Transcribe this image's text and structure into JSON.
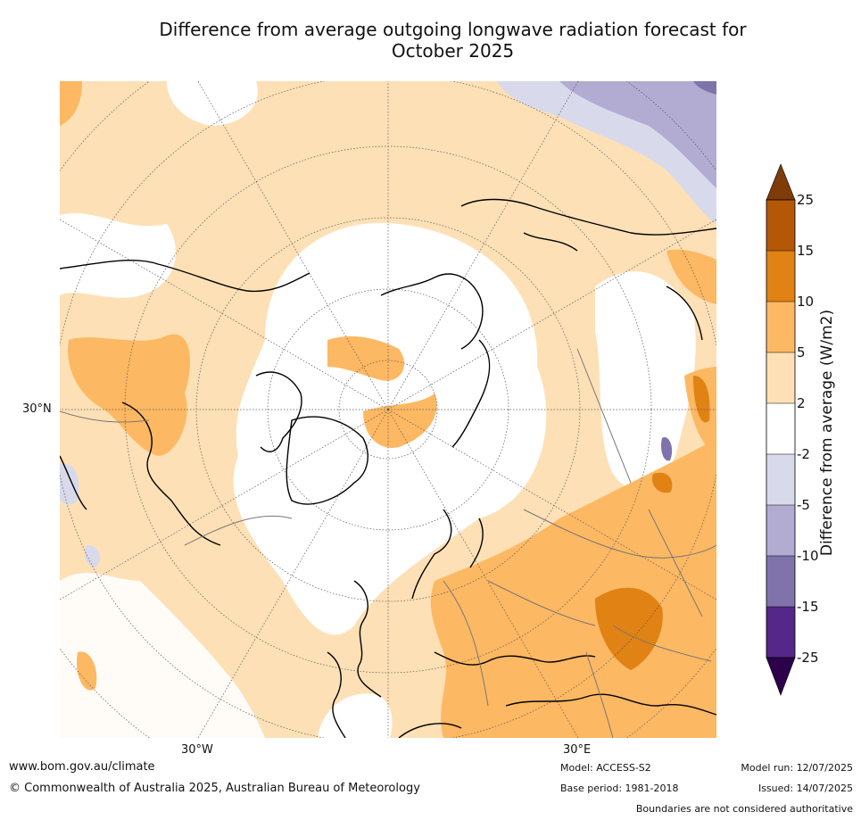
{
  "title_line1": "Difference from average outgoing longwave radiation forecast for",
  "title_line2": "October 2025",
  "map": {
    "lat_label": "30°N",
    "lon_labels": [
      "30°W",
      "30°E"
    ]
  },
  "colorbar": {
    "label": "Difference from average (W/m2)",
    "ticks": [
      "25",
      "15",
      "10",
      "5",
      "2",
      "-2",
      "-5",
      "-10",
      "-15",
      "-25"
    ],
    "colors": {
      "above_max": "#7f3b08",
      "15_to_25": "#b35806",
      "10_to_15": "#e08214",
      "5_to_10": "#fdb863",
      "2_to_5": "#fee0b6",
      "-2_to_2": "#ffffff",
      "-5_to_-2": "#d8daeb",
      "-10_to_-5": "#b2abd2",
      "-15_to_-10": "#8073ac",
      "-25_to_-15": "#542788",
      "below_min": "#2d004b"
    }
  },
  "footer": {
    "website": "www.bom.gov.au/climate",
    "copyright": "© Commonwealth of Australia 2025, Australian Bureau of Meteorology",
    "model": "Model: ACCESS-S2",
    "base_period": "Base period: 1981-2018",
    "model_run": "Model run: 12/07/2025",
    "issued": "Issued: 14/07/2025",
    "disclaimer": "Boundaries are not considered authoritative"
  }
}
